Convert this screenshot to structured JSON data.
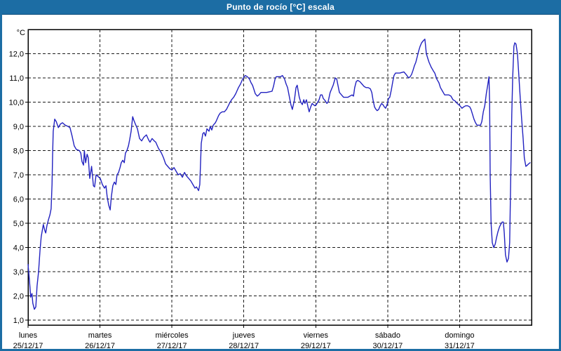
{
  "window": {
    "title": "Punto de rocío [°C] escala"
  },
  "colors": {
    "titlebar_bg": "#1c6da4",
    "titlebar_text": "#ffffff",
    "titlebar_edge": "#0f4e7c",
    "frame": "#1c6da4",
    "plot_bg": "#ffffff",
    "plot_border": "#000000",
    "grid": "#1a1a1a",
    "tick_text": "#000000",
    "line": "#2222c0"
  },
  "chart_data": {
    "type": "line",
    "title": "Punto de rocío [°C] escala",
    "ylabel": "°C",
    "xlabel": "",
    "ylim": [
      0.8,
      13.0
    ],
    "xlim_hours": [
      0,
      168
    ],
    "grid": "dashed",
    "legend": "none",
    "y_ticks": [
      {
        "value": 1,
        "label": "1,0"
      },
      {
        "value": 2,
        "label": "2,0"
      },
      {
        "value": 3,
        "label": "3,0"
      },
      {
        "value": 4,
        "label": "4,0"
      },
      {
        "value": 5,
        "label": "5,0"
      },
      {
        "value": 6,
        "label": "6,0"
      },
      {
        "value": 7,
        "label": "7,0"
      },
      {
        "value": 8,
        "label": "8,0"
      },
      {
        "value": 9,
        "label": "9,0"
      },
      {
        "value": 10,
        "label": "10,0"
      },
      {
        "value": 11,
        "label": "11,0"
      },
      {
        "value": 12,
        "label": "12,0"
      }
    ],
    "x_ticks": [
      {
        "hour": 0,
        "name": "lunes",
        "date": "25/12/17"
      },
      {
        "hour": 24,
        "name": "martes",
        "date": "26/12/17"
      },
      {
        "hour": 48,
        "name": "miércoles",
        "date": "27/12/17"
      },
      {
        "hour": 72,
        "name": "jueves",
        "date": "28/12/17"
      },
      {
        "hour": 96,
        "name": "viernes",
        "date": "29/12/17"
      },
      {
        "hour": 120,
        "name": "sábado",
        "date": "30/12/17"
      },
      {
        "hour": 144,
        "name": "domingo",
        "date": "31/12/17"
      }
    ],
    "series": [
      {
        "name": "Punto de rocío",
        "unit": "°C",
        "points": [
          [
            0,
            3.3
          ],
          [
            0.5,
            2.6
          ],
          [
            0.9,
            1.95
          ],
          [
            1.3,
            2.1
          ],
          [
            1.6,
            1.7
          ],
          [
            2.1,
            1.45
          ],
          [
            2.6,
            1.55
          ],
          [
            3.0,
            2.4
          ],
          [
            3.5,
            3.0
          ],
          [
            4.0,
            3.9
          ],
          [
            4.4,
            4.45
          ],
          [
            5.1,
            4.95
          ],
          [
            5.6,
            4.7
          ],
          [
            5.9,
            4.6
          ],
          [
            6.3,
            4.9
          ],
          [
            6.8,
            5.15
          ],
          [
            7.3,
            5.35
          ],
          [
            7.7,
            5.6
          ],
          [
            8.0,
            6.6
          ],
          [
            8.2,
            7.8
          ],
          [
            8.4,
            8.8
          ],
          [
            8.9,
            9.3
          ],
          [
            9.4,
            9.2
          ],
          [
            10.1,
            8.95
          ],
          [
            10.8,
            9.1
          ],
          [
            11.5,
            9.15
          ],
          [
            12.4,
            9.05
          ],
          [
            13.3,
            9.0
          ],
          [
            14.0,
            8.95
          ],
          [
            14.7,
            8.6
          ],
          [
            15.4,
            8.2
          ],
          [
            16.1,
            8.05
          ],
          [
            17.1,
            8.0
          ],
          [
            17.6,
            7.9
          ],
          [
            18.0,
            7.55
          ],
          [
            18.5,
            7.4
          ],
          [
            18.8,
            8.0
          ],
          [
            19.2,
            7.5
          ],
          [
            19.7,
            7.85
          ],
          [
            20.1,
            7.7
          ],
          [
            20.6,
            6.85
          ],
          [
            21.2,
            7.35
          ],
          [
            21.8,
            6.55
          ],
          [
            22.2,
            6.5
          ],
          [
            22.7,
            7.0
          ],
          [
            23.2,
            6.95
          ],
          [
            23.6,
            6.9
          ],
          [
            24.1,
            6.85
          ],
          [
            24.8,
            6.6
          ],
          [
            25.5,
            6.45
          ],
          [
            26.0,
            6.55
          ],
          [
            26.4,
            6.1
          ],
          [
            26.9,
            5.75
          ],
          [
            27.4,
            5.55
          ],
          [
            27.8,
            6.1
          ],
          [
            28.3,
            6.55
          ],
          [
            28.8,
            6.7
          ],
          [
            29.3,
            6.6
          ],
          [
            29.7,
            7.0
          ],
          [
            30.2,
            7.1
          ],
          [
            30.7,
            7.3
          ],
          [
            31.1,
            7.5
          ],
          [
            31.6,
            7.6
          ],
          [
            32.1,
            7.5
          ],
          [
            32.5,
            7.9
          ],
          [
            33.0,
            8.0
          ],
          [
            33.5,
            8.2
          ],
          [
            33.9,
            8.45
          ],
          [
            34.4,
            8.8
          ],
          [
            34.9,
            9.4
          ],
          [
            35.3,
            9.25
          ],
          [
            35.8,
            9.1
          ],
          [
            36.5,
            8.9
          ],
          [
            37.2,
            8.5
          ],
          [
            37.9,
            8.4
          ],
          [
            38.6,
            8.55
          ],
          [
            39.5,
            8.65
          ],
          [
            40.2,
            8.45
          ],
          [
            40.7,
            8.35
          ],
          [
            41.4,
            8.5
          ],
          [
            42.1,
            8.4
          ],
          [
            42.6,
            8.35
          ],
          [
            43.5,
            8.1
          ],
          [
            44.5,
            7.9
          ],
          [
            45.2,
            7.7
          ],
          [
            45.9,
            7.45
          ],
          [
            46.6,
            7.35
          ],
          [
            47.3,
            7.25
          ],
          [
            48.0,
            7.2
          ],
          [
            48.7,
            7.3
          ],
          [
            49.4,
            7.15
          ],
          [
            50.1,
            7.0
          ],
          [
            50.8,
            7.05
          ],
          [
            51.5,
            6.9
          ],
          [
            52.2,
            7.1
          ],
          [
            52.9,
            6.95
          ],
          [
            53.6,
            6.85
          ],
          [
            54.3,
            6.75
          ],
          [
            55.0,
            6.6
          ],
          [
            55.7,
            6.45
          ],
          [
            56.2,
            6.5
          ],
          [
            56.9,
            6.35
          ],
          [
            57.3,
            6.6
          ],
          [
            57.8,
            8.3
          ],
          [
            58.3,
            8.7
          ],
          [
            58.7,
            8.75
          ],
          [
            59.2,
            8.6
          ],
          [
            59.7,
            8.9
          ],
          [
            60.4,
            8.8
          ],
          [
            60.8,
            9.0
          ],
          [
            61.3,
            8.85
          ],
          [
            61.8,
            9.05
          ],
          [
            62.5,
            9.15
          ],
          [
            62.9,
            9.25
          ],
          [
            63.6,
            9.45
          ],
          [
            64.1,
            9.55
          ],
          [
            64.8,
            9.6
          ],
          [
            65.5,
            9.6
          ],
          [
            66.2,
            9.7
          ],
          [
            67.2,
            9.95
          ],
          [
            67.9,
            10.1
          ],
          [
            68.6,
            10.2
          ],
          [
            69.3,
            10.35
          ],
          [
            70.2,
            10.6
          ],
          [
            70.9,
            10.75
          ],
          [
            71.6,
            10.95
          ],
          [
            72.1,
            11.05
          ],
          [
            72.5,
            11.1
          ],
          [
            73.2,
            11.05
          ],
          [
            73.9,
            10.95
          ],
          [
            74.4,
            10.8
          ],
          [
            74.9,
            10.7
          ],
          [
            75.3,
            10.55
          ],
          [
            75.8,
            10.35
          ],
          [
            76.5,
            10.25
          ],
          [
            77.0,
            10.3
          ],
          [
            77.7,
            10.4
          ],
          [
            79.6,
            10.4
          ],
          [
            81.4,
            10.45
          ],
          [
            81.9,
            10.65
          ],
          [
            82.4,
            10.95
          ],
          [
            82.8,
            11.05
          ],
          [
            84.2,
            11.05
          ],
          [
            84.9,
            11.1
          ],
          [
            85.6,
            10.95
          ],
          [
            86.1,
            10.75
          ],
          [
            86.6,
            10.6
          ],
          [
            87.3,
            10.15
          ],
          [
            87.7,
            9.9
          ],
          [
            88.2,
            9.7
          ],
          [
            88.9,
            10.1
          ],
          [
            89.4,
            10.6
          ],
          [
            89.8,
            10.7
          ],
          [
            90.5,
            10.2
          ],
          [
            91.0,
            10.0
          ],
          [
            91.5,
            9.9
          ],
          [
            92.0,
            10.1
          ],
          [
            92.4,
            9.95
          ],
          [
            92.9,
            10.1
          ],
          [
            93.4,
            9.8
          ],
          [
            93.8,
            9.6
          ],
          [
            94.3,
            9.8
          ],
          [
            94.8,
            9.95
          ],
          [
            95.2,
            9.9
          ],
          [
            95.7,
            9.85
          ],
          [
            96.2,
            9.9
          ],
          [
            97.1,
            10.1
          ],
          [
            97.6,
            10.3
          ],
          [
            98.1,
            10.3
          ],
          [
            98.5,
            10.15
          ],
          [
            99.2,
            10.05
          ],
          [
            99.7,
            9.95
          ],
          [
            100.1,
            10.0
          ],
          [
            100.8,
            10.4
          ],
          [
            101.8,
            10.7
          ],
          [
            102.5,
            11.0
          ],
          [
            103.0,
            10.95
          ],
          [
            103.4,
            10.7
          ],
          [
            103.9,
            10.4
          ],
          [
            104.6,
            10.3
          ],
          [
            105.3,
            10.2
          ],
          [
            106.7,
            10.2
          ],
          [
            107.4,
            10.25
          ],
          [
            108.1,
            10.3
          ],
          [
            108.6,
            10.25
          ],
          [
            109.0,
            10.6
          ],
          [
            109.5,
            10.85
          ],
          [
            110.0,
            10.9
          ],
          [
            110.7,
            10.85
          ],
          [
            111.4,
            10.75
          ],
          [
            112.1,
            10.65
          ],
          [
            112.8,
            10.6
          ],
          [
            113.5,
            10.6
          ],
          [
            114.2,
            10.55
          ],
          [
            114.7,
            10.4
          ],
          [
            115.1,
            10.1
          ],
          [
            115.6,
            9.8
          ],
          [
            116.1,
            9.7
          ],
          [
            116.5,
            9.65
          ],
          [
            117.0,
            9.7
          ],
          [
            117.5,
            9.85
          ],
          [
            118.0,
            9.95
          ],
          [
            118.4,
            9.9
          ],
          [
            118.9,
            9.8
          ],
          [
            119.3,
            9.75
          ],
          [
            119.8,
            9.9
          ],
          [
            120.3,
            10.15
          ],
          [
            120.7,
            10.2
          ],
          [
            121.2,
            10.5
          ],
          [
            121.7,
            10.85
          ],
          [
            122.1,
            11.1
          ],
          [
            122.6,
            11.2
          ],
          [
            124.0,
            11.2
          ],
          [
            125.4,
            11.25
          ],
          [
            126.1,
            11.15
          ],
          [
            127.0,
            11.0
          ],
          [
            127.5,
            11.05
          ],
          [
            128.0,
            11.15
          ],
          [
            128.4,
            11.3
          ],
          [
            128.9,
            11.5
          ],
          [
            129.4,
            11.65
          ],
          [
            129.9,
            11.9
          ],
          [
            130.3,
            12.1
          ],
          [
            130.8,
            12.3
          ],
          [
            131.3,
            12.45
          ],
          [
            132.0,
            12.55
          ],
          [
            132.4,
            12.6
          ],
          [
            132.9,
            12.0
          ],
          [
            133.4,
            11.8
          ],
          [
            133.8,
            11.65
          ],
          [
            134.5,
            11.45
          ],
          [
            135.2,
            11.3
          ],
          [
            135.7,
            11.2
          ],
          [
            136.4,
            10.95
          ],
          [
            137.1,
            10.8
          ],
          [
            137.6,
            10.6
          ],
          [
            138.3,
            10.45
          ],
          [
            139.0,
            10.3
          ],
          [
            140.4,
            10.3
          ],
          [
            141.1,
            10.25
          ],
          [
            141.8,
            10.1
          ],
          [
            142.5,
            10.05
          ],
          [
            143.2,
            9.95
          ],
          [
            143.7,
            9.9
          ],
          [
            144.1,
            9.85
          ],
          [
            144.8,
            9.75
          ],
          [
            145.3,
            9.8
          ],
          [
            146.0,
            9.85
          ],
          [
            146.7,
            9.85
          ],
          [
            147.4,
            9.8
          ],
          [
            147.8,
            9.7
          ],
          [
            148.3,
            9.5
          ],
          [
            148.8,
            9.3
          ],
          [
            149.3,
            9.15
          ],
          [
            149.8,
            9.05
          ],
          [
            151.0,
            9.05
          ],
          [
            151.4,
            9.2
          ],
          [
            151.9,
            9.6
          ],
          [
            152.4,
            9.85
          ],
          [
            152.9,
            10.35
          ],
          [
            153.3,
            10.65
          ],
          [
            153.8,
            11.05
          ],
          [
            154.0,
            10.0
          ],
          [
            154.2,
            7.0
          ],
          [
            154.5,
            5.0
          ],
          [
            154.9,
            4.2
          ],
          [
            155.4,
            4.0
          ],
          [
            155.9,
            4.15
          ],
          [
            156.3,
            4.4
          ],
          [
            156.8,
            4.65
          ],
          [
            157.3,
            4.85
          ],
          [
            157.7,
            4.95
          ],
          [
            158.2,
            5.05
          ],
          [
            158.6,
            5.05
          ],
          [
            158.9,
            4.6
          ],
          [
            159.3,
            3.7
          ],
          [
            159.8,
            3.4
          ],
          [
            160.3,
            3.55
          ],
          [
            160.7,
            4.2
          ],
          [
            161.0,
            6.5
          ],
          [
            161.4,
            9.5
          ],
          [
            161.7,
            11.0
          ],
          [
            162.1,
            12.3
          ],
          [
            162.4,
            12.45
          ],
          [
            162.8,
            12.4
          ],
          [
            163.3,
            12.0
          ],
          [
            163.8,
            11.0
          ],
          [
            164.2,
            10.2
          ],
          [
            164.7,
            9.3
          ],
          [
            165.2,
            8.5
          ],
          [
            165.6,
            7.7
          ],
          [
            166.1,
            7.35
          ],
          [
            166.6,
            7.4
          ],
          [
            167.0,
            7.45
          ],
          [
            167.5,
            7.5
          ]
        ]
      }
    ]
  }
}
